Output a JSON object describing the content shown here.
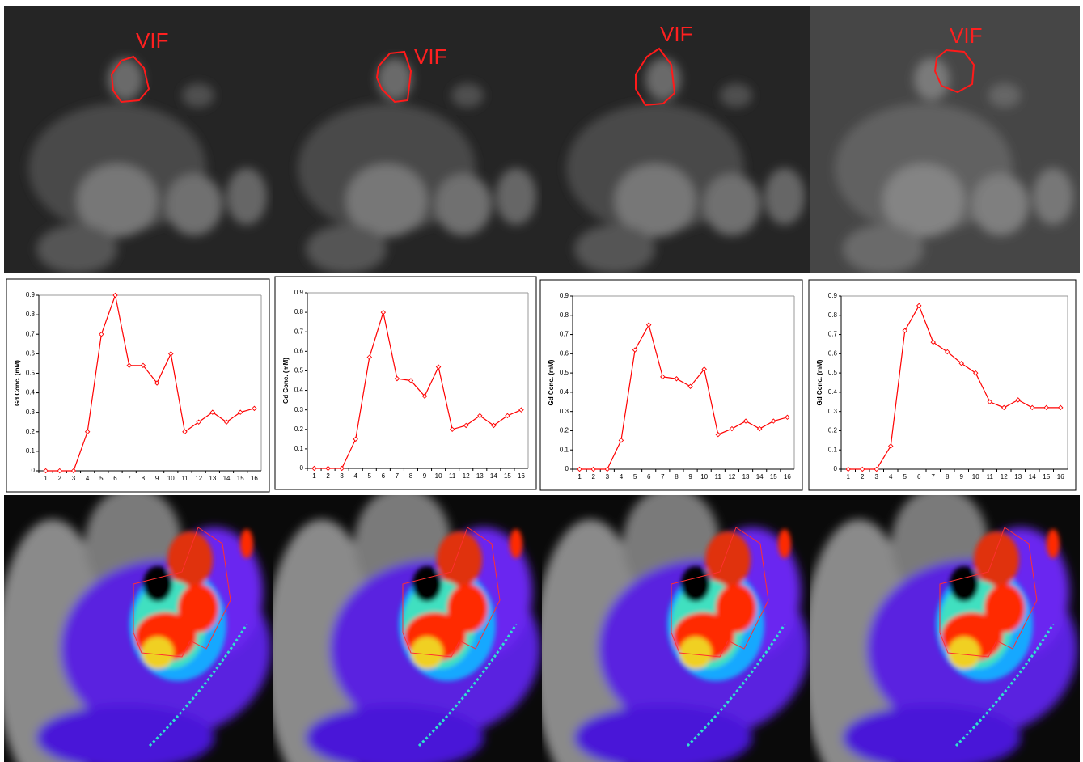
{
  "images": {
    "vif_labels": [
      "VIF",
      "VIF",
      "VIF",
      "VIF"
    ]
  },
  "chart_data": [
    {
      "type": "line",
      "y_label": "Gd Conc. (mM)",
      "categories": [
        "1",
        "2",
        "3",
        "4",
        "5",
        "6",
        "7",
        "8",
        "9",
        "10",
        "11",
        "12",
        "13",
        "14",
        "15",
        "16"
      ],
      "values": [
        0,
        0,
        0,
        0.2,
        0.7,
        0.9,
        0.54,
        0.54,
        0.45,
        0.6,
        0.2,
        0.25,
        0.3,
        0.25,
        0.3,
        0.32
      ],
      "color": "#ff0000",
      "ylim": [
        0,
        0.9
      ],
      "yticks": [
        0,
        0.1,
        0.2,
        0.3,
        0.4,
        0.5,
        0.6,
        0.7,
        0.8,
        0.9
      ]
    },
    {
      "type": "line",
      "y_label": "Gd Conc. (mM)",
      "categories": [
        "1",
        "2",
        "3",
        "4",
        "5",
        "6",
        "7",
        "8",
        "9",
        "10",
        "11",
        "12",
        "13",
        "14",
        "15",
        "16"
      ],
      "values": [
        0,
        0,
        0,
        0.15,
        0.57,
        0.8,
        0.46,
        0.45,
        0.37,
        0.52,
        0.2,
        0.22,
        0.27,
        0.22,
        0.27,
        0.3
      ],
      "color": "#ff0000",
      "ylim": [
        0,
        0.9
      ],
      "yticks": [
        0,
        0.1,
        0.2,
        0.3,
        0.4,
        0.5,
        0.6,
        0.7,
        0.8,
        0.9
      ]
    },
    {
      "type": "line",
      "y_label": "Gd Conc. (mM)",
      "categories": [
        "1",
        "2",
        "3",
        "4",
        "5",
        "6",
        "7",
        "8",
        "9",
        "10",
        "11",
        "12",
        "13",
        "14",
        "15",
        "16"
      ],
      "values": [
        0,
        0,
        0,
        0.15,
        0.62,
        0.75,
        0.48,
        0.47,
        0.43,
        0.52,
        0.18,
        0.21,
        0.25,
        0.21,
        0.25,
        0.27
      ],
      "color": "#ff0000",
      "ylim": [
        0,
        0.9
      ],
      "yticks": [
        0,
        0.1,
        0.2,
        0.3,
        0.4,
        0.5,
        0.6,
        0.7,
        0.8,
        0.9
      ]
    },
    {
      "type": "line",
      "y_label": "Gd Conc. (mM)",
      "categories": [
        "1",
        "2",
        "3",
        "4",
        "5",
        "6",
        "7",
        "8",
        "9",
        "10",
        "11",
        "12",
        "13",
        "14",
        "15",
        "16"
      ],
      "values": [
        0,
        0,
        0,
        0.12,
        0.72,
        0.85,
        0.66,
        0.61,
        0.55,
        0.5,
        0.35,
        0.32,
        0.36,
        0.32,
        0.32,
        0.32
      ],
      "color": "#ff0000",
      "ylim": [
        0,
        0.9
      ],
      "yticks": [
        0,
        0.1,
        0.2,
        0.3,
        0.4,
        0.5,
        0.6,
        0.7,
        0.8,
        0.9
      ]
    }
  ]
}
